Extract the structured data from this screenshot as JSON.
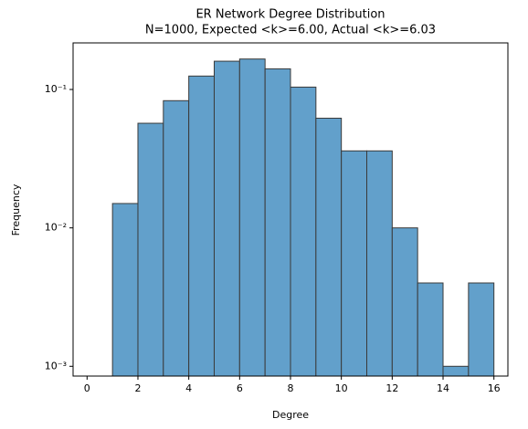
{
  "chart_data": {
    "type": "histogram",
    "title": "ER Network Degree Distribution",
    "subtitle": "N=1000, Expected <k>=6.00, Actual <k>=6.03",
    "x_label": "Degree",
    "y_label": "Frequency",
    "bins": [
      0,
      1,
      2,
      3,
      4,
      5,
      6,
      7,
      8,
      9,
      10,
      11,
      12,
      13,
      14,
      15,
      16
    ],
    "counts": [
      0,
      0.015,
      0.057,
      0.083,
      0.125,
      0.16,
      0.166,
      0.141,
      0.104,
      0.062,
      0.036,
      0.036,
      0.01,
      0.004,
      0.001,
      0.004
    ],
    "color": "#62a0cb",
    "edge_color": "#3a3a3a",
    "xlim": [
      -0.55,
      16.55
    ],
    "xticks": [
      0,
      2,
      4,
      6,
      8,
      10,
      12,
      14,
      16
    ],
    "ylim": [
      0.00085,
      0.217
    ],
    "y_log": true,
    "yticks": [
      {
        "value": 0.001,
        "label": "10⁻³"
      },
      {
        "value": 0.01,
        "label": "10⁻²"
      },
      {
        "value": 0.1,
        "label": "10⁻¹"
      }
    ],
    "grid": false
  }
}
